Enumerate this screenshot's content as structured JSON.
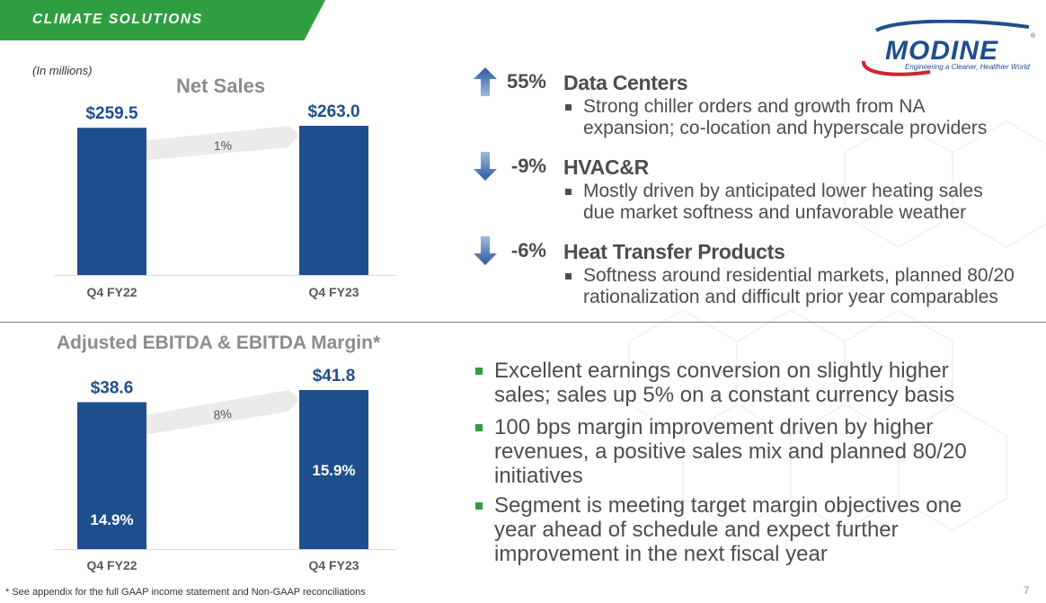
{
  "header": {
    "banner": "CLIMATE SOLUTIONS"
  },
  "logo": {
    "name": "MODINE",
    "tagline": "Engineering a Cleaner, Healthier World",
    "mark": "®"
  },
  "units_note": "(In millions)",
  "colors": {
    "bar": "#1f4e8c",
    "green": "#2f9e41",
    "arrow": "#3f6fb0",
    "value_text": "#1f4e8c"
  },
  "chart_data": [
    {
      "type": "bar",
      "title": "Net Sales",
      "categories": [
        "Q4 FY22",
        "Q4 FY23"
      ],
      "values": [
        259.5,
        263.0
      ],
      "value_labels": [
        "$259.5",
        "$263.0"
      ],
      "growth_label": "1%",
      "ylim": [
        0,
        263.0
      ]
    },
    {
      "type": "bar",
      "title": "Adjusted EBITDA & EBITDA Margin*",
      "categories": [
        "Q4 FY22",
        "Q4 FY23"
      ],
      "values": [
        38.6,
        41.8
      ],
      "value_labels": [
        "$38.6",
        "$41.8"
      ],
      "margin_labels": [
        "14.9%",
        "15.9%"
      ],
      "growth_label": "8%",
      "ylim": [
        0,
        41.8
      ]
    }
  ],
  "segments": [
    {
      "direction": "up",
      "pct": "55%",
      "name": "Data Centers",
      "detail": [
        "Strong chiller orders and growth from NA",
        "expansion; co-location and hyperscale providers"
      ]
    },
    {
      "direction": "down",
      "pct": "-9%",
      "name": "HVAC&R",
      "detail": [
        "Mostly driven by anticipated lower heating sales",
        "due market softness and unfavorable weather"
      ]
    },
    {
      "direction": "down",
      "pct": "-6%",
      "name": "Heat Transfer Products",
      "detail": [
        "Softness around residential markets, planned 80/20",
        "rationalization and difficult prior year comparables"
      ]
    }
  ],
  "highlights": [
    [
      "Excellent earnings conversion on slightly higher",
      "sales; sales up 5% on a constant currency basis"
    ],
    [
      "100 bps margin improvement driven by higher",
      "revenues, a positive sales mix and planned 80/20",
      "initiatives"
    ],
    [
      "Segment is meeting target margin objectives one",
      "year ahead of schedule and expect further",
      "improvement in the next fiscal year"
    ]
  ],
  "footnote": "* See appendix for the full GAAP income statement and Non-GAAP reconciliations",
  "page_number": "7"
}
